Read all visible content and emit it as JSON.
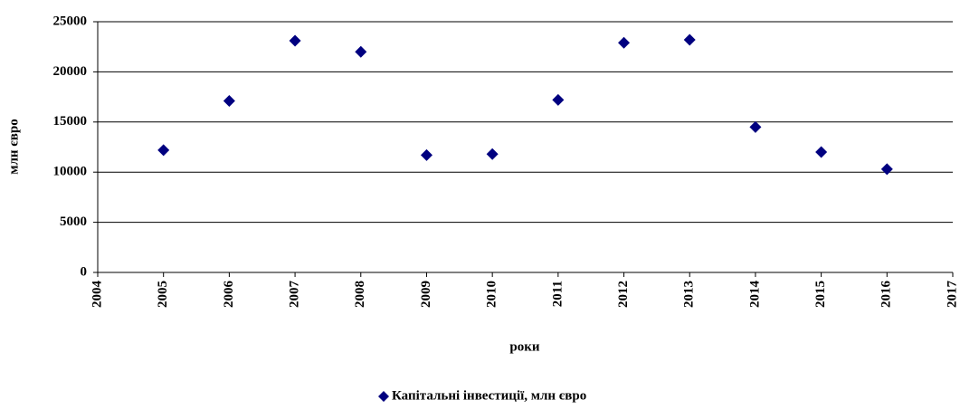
{
  "chart_data": {
    "type": "scatter",
    "x_label": "роки",
    "y_label": "млн євро",
    "x": [
      2005,
      2006,
      2007,
      2008,
      2009,
      2010,
      2011,
      2012,
      2013,
      2014,
      2015,
      2016
    ],
    "series": [
      {
        "name": "Капітальні інвестиції, млн євро",
        "color": "#000080",
        "values": [
          12200,
          17100,
          23100,
          22000,
          11700,
          11800,
          17200,
          22900,
          23200,
          14500,
          12000,
          10300
        ]
      }
    ],
    "xlim": [
      2004,
      2017
    ],
    "xticks": [
      2004,
      2005,
      2006,
      2007,
      2008,
      2009,
      2010,
      2011,
      2012,
      2013,
      2014,
      2015,
      2016,
      2017
    ],
    "ylim": [
      0,
      25000
    ],
    "yticks": [
      0,
      5000,
      10000,
      15000,
      20000,
      25000
    ],
    "grid": true,
    "legend": "bottom"
  }
}
